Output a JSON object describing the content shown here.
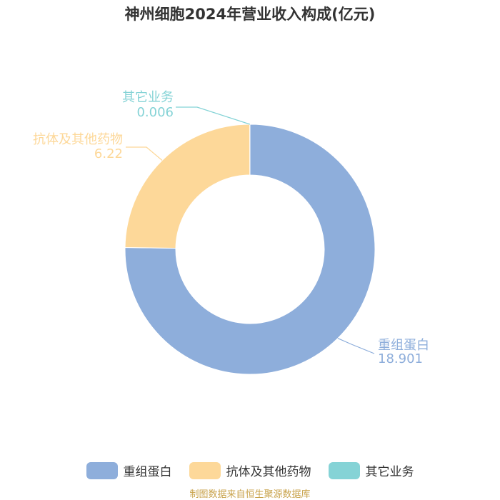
{
  "title": "神州细胞2024年营业收入构成(亿元)",
  "chart_data": {
    "type": "pie",
    "title": "神州细胞2024年营业收入构成(亿元)",
    "donut": true,
    "legend_position": "bottom",
    "slices": [
      {
        "label": "重组蛋白",
        "value": 18.901,
        "value_text": "18.901",
        "color": "#8eaedb"
      },
      {
        "label": "抗体及其他药物",
        "value": 6.22,
        "value_text": "6.22",
        "color": "#fdd899"
      },
      {
        "label": "其它业务",
        "value": 0.006,
        "value_text": "0.006",
        "color": "#85d3d6"
      }
    ]
  },
  "source": "制图数据来自恒生聚源数据库"
}
